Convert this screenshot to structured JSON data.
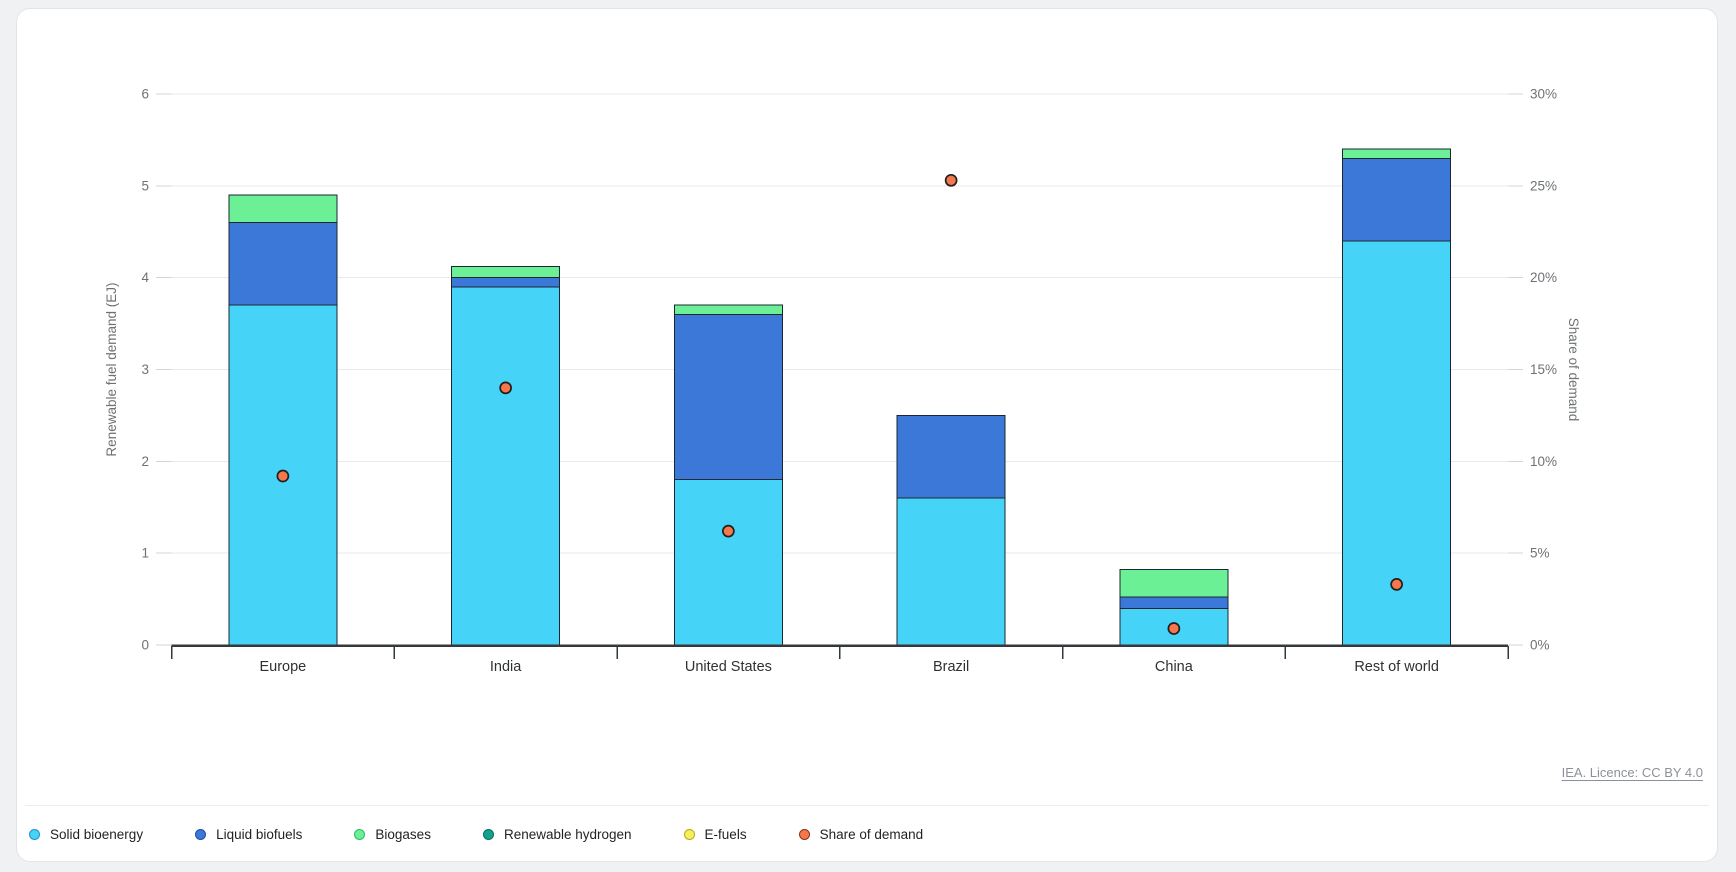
{
  "page": {
    "attribution": "IEA. Licence: CC BY 4.0"
  },
  "chart_data": {
    "type": "bar",
    "stacked": true,
    "title": "",
    "categories": [
      "Europe",
      "India",
      "United States",
      "Brazil",
      "China",
      "Rest of world"
    ],
    "series": [
      {
        "name": "Solid bioenergy",
        "color": "#45d3f7",
        "values": [
          3.7,
          3.9,
          1.8,
          1.6,
          0.4,
          4.4
        ]
      },
      {
        "name": "Liquid biofuels",
        "color": "#3c78d8",
        "values": [
          0.9,
          0.1,
          1.8,
          0.9,
          0.12,
          0.9
        ]
      },
      {
        "name": "Biogases",
        "color": "#6cf096",
        "values": [
          0.3,
          0.12,
          0.1,
          0,
          0.3,
          0.1
        ]
      },
      {
        "name": "Renewable hydrogen",
        "color": "#12a18c",
        "values": [
          0,
          0,
          0,
          0,
          0,
          0
        ]
      },
      {
        "name": "E-fuels",
        "color": "#f7ee5d",
        "values": [
          0,
          0,
          0,
          0,
          0,
          0
        ]
      }
    ],
    "scatter_series": {
      "name": "Share of demand",
      "color": "#f4774e",
      "values_percent": [
        9.2,
        14.0,
        6.2,
        25.3,
        0.9,
        3.3
      ]
    },
    "ylabel_left": "Renewable fuel demand (EJ)",
    "ylabel_right": "Share of demand",
    "ylim_left": [
      0,
      6
    ],
    "ylim_right_percent": [
      0,
      30
    ],
    "yticks_left": [
      "0",
      "1",
      "2",
      "3",
      "4",
      "5",
      "6"
    ],
    "yticks_right": [
      "0%",
      "5%",
      "10%",
      "15%",
      "20%",
      "25%",
      "30%"
    ],
    "grid": true,
    "legend_position": "bottom"
  },
  "legend": {
    "items": [
      {
        "label": "Solid bioenergy",
        "fill": "#45d3f7",
        "ring": "#1e93c0"
      },
      {
        "label": "Liquid biofuels",
        "fill": "#3c78d8",
        "ring": "#1c4d9e"
      },
      {
        "label": "Biogases",
        "fill": "#6cf096",
        "ring": "#2eb863"
      },
      {
        "label": "Renewable hydrogen",
        "fill": "#12a18c",
        "ring": "#076e60"
      },
      {
        "label": "E-fuels",
        "fill": "#f7ee5d",
        "ring": "#bba818"
      },
      {
        "label": "Share of demand",
        "fill": "#f4774e",
        "ring": "#8c3014"
      }
    ]
  }
}
